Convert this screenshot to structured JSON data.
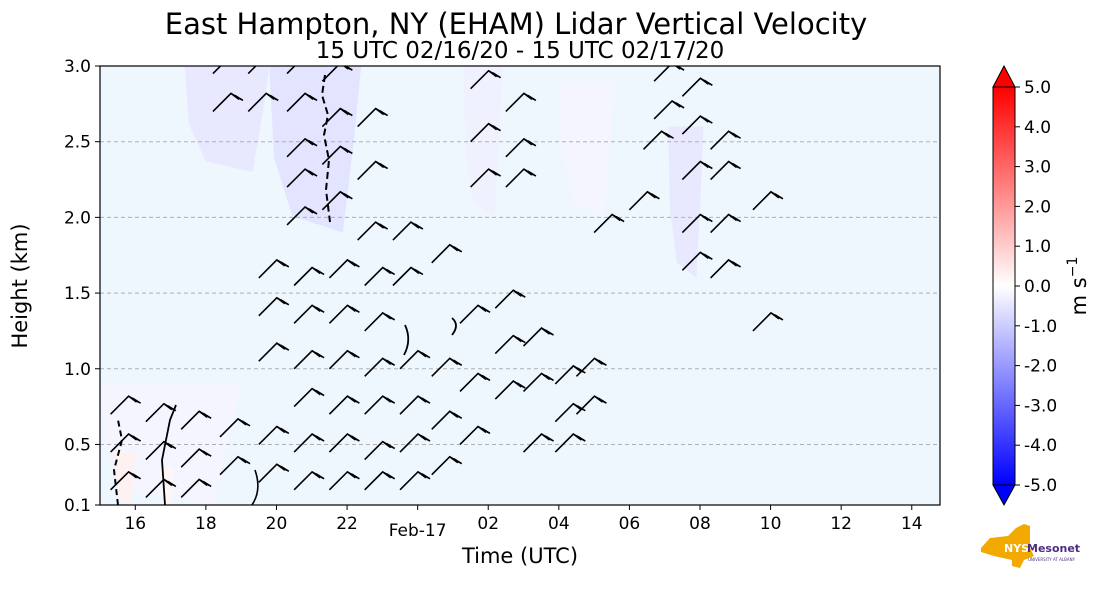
{
  "chart_data": {
    "type": "heatmap",
    "title": "East Hampton, NY (EHAM) Lidar Vertical Velocity",
    "subtitle": "15 UTC 02/16/20 - 15 UTC 02/17/20",
    "xlabel": "Time (UTC)",
    "ylabel": "Height (km)",
    "x_ticks": [
      {
        "hour": 16,
        "label": "16"
      },
      {
        "hour": 18,
        "label": "18"
      },
      {
        "hour": 20,
        "label": "20"
      },
      {
        "hour": 22,
        "label": "22"
      },
      {
        "hour": 24,
        "label": "Feb-17"
      },
      {
        "hour": 26,
        "label": "02"
      },
      {
        "hour": 28,
        "label": "04"
      },
      {
        "hour": 30,
        "label": "06"
      },
      {
        "hour": 32,
        "label": "08"
      },
      {
        "hour": 34,
        "label": "10"
      },
      {
        "hour": 36,
        "label": "12"
      },
      {
        "hour": 38,
        "label": "14"
      }
    ],
    "xlim_hours": [
      15,
      38.8
    ],
    "y_ticks": [
      0.1,
      0.5,
      1.0,
      1.5,
      2.0,
      2.5,
      3.0
    ],
    "y_tick_labels": [
      "0.1",
      "0.5",
      "1.0",
      "1.5",
      "2.0",
      "2.5",
      "3.0"
    ],
    "ylim": [
      0.1,
      3.0
    ],
    "grid": "horizontal dashed",
    "colorbar": {
      "label": "m s",
      "label_superscript": "−1",
      "range": [
        -5.0,
        5.0
      ],
      "tick_values": [
        5,
        4,
        3,
        2,
        1,
        0,
        -1,
        -2,
        -3,
        -4,
        -5
      ],
      "tick_labels": [
        "5.0",
        "4.0",
        "3.0",
        "2.0",
        "1.0",
        "0.0",
        "-1.0",
        "-2.0",
        "-3.0",
        "-4.0",
        "-5.0"
      ],
      "colors": {
        "max": "#ff0000",
        "mid": "#ffffff",
        "min": "#0000ff"
      }
    },
    "background_value_color": "#eef6fe",
    "downdraft_regions": [
      {
        "hours": [
          17.4,
          19.8
        ],
        "heights": [
          2.3,
          3.0
        ],
        "value": -0.5
      },
      {
        "hours": [
          19.8,
          22.4
        ],
        "heights": [
          1.9,
          3.0
        ],
        "value": -0.6
      },
      {
        "hours": [
          25.3,
          26.4
        ],
        "heights": [
          2.0,
          3.0
        ],
        "value": -0.3
      },
      {
        "hours": [
          28.0,
          29.6
        ],
        "heights": [
          2.0,
          2.9
        ],
        "value": -0.2
      },
      {
        "hours": [
          31.1,
          32.1
        ],
        "heights": [
          1.6,
          2.6
        ],
        "value": -0.5
      },
      {
        "hours": [
          15.0,
          19.0
        ],
        "heights": [
          0.1,
          0.9
        ],
        "value": -0.2
      }
    ],
    "updraft_regions": [
      {
        "hours": [
          15.4,
          16.0
        ],
        "heights": [
          0.1,
          0.45
        ],
        "value": 0.3
      },
      {
        "hours": [
          16.7,
          17.1
        ],
        "heights": [
          0.1,
          0.35
        ],
        "value": 0.2
      }
    ],
    "wind_barbs": [
      {
        "hour": 15.3,
        "height": 0.7
      },
      {
        "hour": 15.3,
        "height": 0.45
      },
      {
        "hour": 15.3,
        "height": 0.2
      },
      {
        "hour": 16.3,
        "height": 0.65
      },
      {
        "hour": 16.3,
        "height": 0.4
      },
      {
        "hour": 16.3,
        "height": 0.15
      },
      {
        "hour": 17.3,
        "height": 0.6
      },
      {
        "hour": 17.3,
        "height": 0.35
      },
      {
        "hour": 17.3,
        "height": 0.15
      },
      {
        "hour": 18.2,
        "height": 2.95
      },
      {
        "hour": 18.2,
        "height": 2.7
      },
      {
        "hour": 18.4,
        "height": 0.55
      },
      {
        "hour": 18.4,
        "height": 0.3
      },
      {
        "hour": 19.2,
        "height": 2.95
      },
      {
        "hour": 19.2,
        "height": 2.7
      },
      {
        "hour": 19.5,
        "height": 1.6
      },
      {
        "hour": 19.5,
        "height": 1.35
      },
      {
        "hour": 19.5,
        "height": 1.05
      },
      {
        "hour": 19.5,
        "height": 0.5
      },
      {
        "hour": 19.5,
        "height": 0.25
      },
      {
        "hour": 20.3,
        "height": 2.95
      },
      {
        "hour": 20.3,
        "height": 2.7
      },
      {
        "hour": 20.3,
        "height": 2.4
      },
      {
        "hour": 20.3,
        "height": 2.2
      },
      {
        "hour": 20.3,
        "height": 1.95
      },
      {
        "hour": 20.5,
        "height": 1.55
      },
      {
        "hour": 20.5,
        "height": 1.3
      },
      {
        "hour": 20.5,
        "height": 1.0
      },
      {
        "hour": 20.5,
        "height": 0.75
      },
      {
        "hour": 20.5,
        "height": 0.45
      },
      {
        "hour": 20.5,
        "height": 0.2
      },
      {
        "hour": 21.3,
        "height": 2.9
      },
      {
        "hour": 21.3,
        "height": 2.6
      },
      {
        "hour": 21.3,
        "height": 2.35
      },
      {
        "hour": 21.3,
        "height": 2.05
      },
      {
        "hour": 21.5,
        "height": 1.6
      },
      {
        "hour": 21.5,
        "height": 1.3
      },
      {
        "hour": 21.5,
        "height": 1.0
      },
      {
        "hour": 21.5,
        "height": 0.7
      },
      {
        "hour": 21.5,
        "height": 0.45
      },
      {
        "hour": 21.5,
        "height": 0.2
      },
      {
        "hour": 22.3,
        "height": 2.6
      },
      {
        "hour": 22.3,
        "height": 2.25
      },
      {
        "hour": 22.3,
        "height": 1.85
      },
      {
        "hour": 22.5,
        "height": 1.55
      },
      {
        "hour": 22.5,
        "height": 1.25
      },
      {
        "hour": 22.5,
        "height": 0.95
      },
      {
        "hour": 22.5,
        "height": 0.7
      },
      {
        "hour": 22.5,
        "height": 0.4
      },
      {
        "hour": 22.5,
        "height": 0.2
      },
      {
        "hour": 23.3,
        "height": 1.85
      },
      {
        "hour": 23.3,
        "height": 1.55
      },
      {
        "hour": 23.5,
        "height": 1.0
      },
      {
        "hour": 23.5,
        "height": 0.7
      },
      {
        "hour": 23.5,
        "height": 0.45
      },
      {
        "hour": 23.5,
        "height": 0.2
      },
      {
        "hour": 24.4,
        "height": 1.7
      },
      {
        "hour": 24.4,
        "height": 0.95
      },
      {
        "hour": 24.4,
        "height": 0.6
      },
      {
        "hour": 24.4,
        "height": 0.3
      },
      {
        "hour": 25.2,
        "height": 1.3
      },
      {
        "hour": 25.2,
        "height": 0.85
      },
      {
        "hour": 25.2,
        "height": 0.5
      },
      {
        "hour": 25.5,
        "height": 2.85
      },
      {
        "hour": 25.5,
        "height": 2.5
      },
      {
        "hour": 25.5,
        "height": 2.2
      },
      {
        "hour": 26.2,
        "height": 1.4
      },
      {
        "hour": 26.2,
        "height": 1.1
      },
      {
        "hour": 26.2,
        "height": 0.8
      },
      {
        "hour": 26.5,
        "height": 2.7
      },
      {
        "hour": 26.5,
        "height": 2.4
      },
      {
        "hour": 26.5,
        "height": 2.2
      },
      {
        "hour": 27.0,
        "height": 1.15
      },
      {
        "hour": 27.0,
        "height": 0.85
      },
      {
        "hour": 27.0,
        "height": 0.45
      },
      {
        "hour": 27.9,
        "height": 0.9
      },
      {
        "hour": 27.9,
        "height": 0.65
      },
      {
        "hour": 27.9,
        "height": 0.45
      },
      {
        "hour": 28.5,
        "height": 0.95
      },
      {
        "hour": 28.5,
        "height": 0.7
      },
      {
        "hour": 29.0,
        "height": 1.9
      },
      {
        "hour": 30.0,
        "height": 2.05
      },
      {
        "hour": 30.4,
        "height": 2.45
      },
      {
        "hour": 30.7,
        "height": 2.9
      },
      {
        "hour": 30.7,
        "height": 2.65
      },
      {
        "hour": 31.5,
        "height": 2.8
      },
      {
        "hour": 31.5,
        "height": 2.55
      },
      {
        "hour": 31.5,
        "height": 2.25
      },
      {
        "hour": 31.5,
        "height": 1.9
      },
      {
        "hour": 31.5,
        "height": 1.65
      },
      {
        "hour": 32.3,
        "height": 2.45
      },
      {
        "hour": 32.3,
        "height": 2.25
      },
      {
        "hour": 32.3,
        "height": 1.9
      },
      {
        "hour": 32.3,
        "height": 1.6
      },
      {
        "hour": 33.5,
        "height": 2.05
      },
      {
        "hour": 33.5,
        "height": 1.25
      }
    ],
    "contours": {
      "color": "#000000",
      "style": "dashed"
    },
    "logo": {
      "text": "NYS",
      "wordmark": "Mesonet",
      "tagline": "UNIVERSITY AT ALBANY",
      "color_gold": "#f2a900",
      "color_purple": "#4b2e83"
    }
  }
}
